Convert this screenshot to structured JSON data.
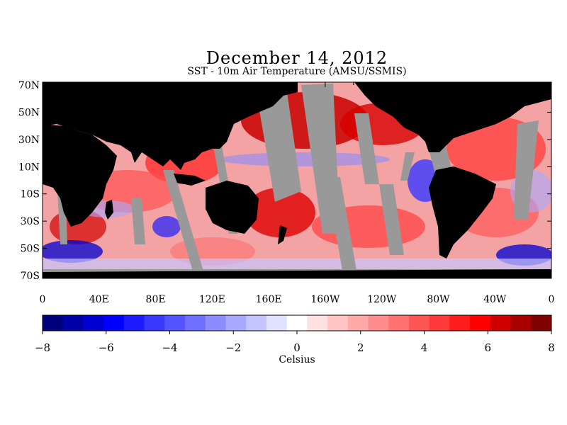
{
  "title": "December 14, 2012",
  "subtitle": "SST - 10m Air Temperature (AMSU/SSMIS)",
  "map": {
    "lat_labels": [
      "70N",
      "50N",
      "30N",
      "10N",
      "10S",
      "30S",
      "50S",
      "70S"
    ],
    "lon_labels": [
      "0",
      "40E",
      "80E",
      "120E",
      "160E",
      "160W",
      "120W",
      "80W",
      "40W",
      "0"
    ],
    "colors": {
      "land": "#000000",
      "missing_data": "#999999",
      "ocean_base": "#f3a3a3"
    }
  },
  "colorbar": {
    "label": "Celsius",
    "tick_labels": [
      "−8",
      "−6",
      "−4",
      "−2",
      "0",
      "2",
      "4",
      "6",
      "8"
    ],
    "min": -8,
    "max": 8,
    "colors": [
      "#00007f",
      "#0000a8",
      "#0000d0",
      "#0000ff",
      "#1c1cff",
      "#3838ff",
      "#5454ff",
      "#7070ff",
      "#8c8cff",
      "#a8a8ff",
      "#c4c4ff",
      "#e0e0ff",
      "#ffffff",
      "#ffe0e0",
      "#ffc4c4",
      "#ffa8a8",
      "#ff8c8c",
      "#ff7070",
      "#ff5454",
      "#ff3838",
      "#ff1c1c",
      "#ff0000",
      "#d00000",
      "#a80000",
      "#7f0000"
    ]
  }
}
